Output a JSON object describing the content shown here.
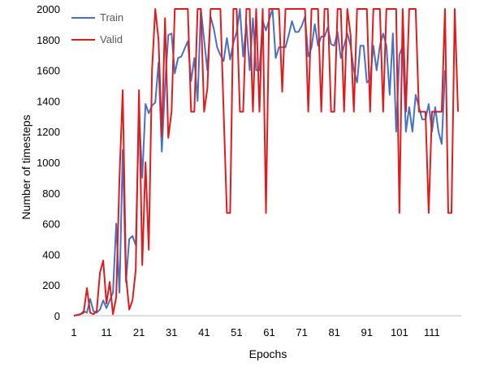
{
  "chart_data": {
    "type": "line",
    "title": "",
    "xlabel": "Epochs",
    "ylabel": "Number of timesteps",
    "xlim": [
      1,
      120
    ],
    "ylim": [
      0,
      2000
    ],
    "x_ticks": [
      1,
      11,
      21,
      31,
      41,
      51,
      61,
      71,
      81,
      91,
      101,
      111
    ],
    "y_ticks": [
      0,
      200,
      400,
      600,
      800,
      1000,
      1200,
      1400,
      1600,
      1800,
      2000
    ],
    "grid": false,
    "legend": "top-left",
    "series": [
      {
        "name": "Train",
        "color": "#4472C4",
        "values": [
          0,
          5,
          10,
          30,
          20,
          110,
          30,
          20,
          40,
          100,
          50,
          100,
          150,
          600,
          150,
          1080,
          220,
          500,
          520,
          460,
          1330,
          900,
          1380,
          1320,
          1370,
          1390,
          1650,
          1070,
          1500,
          1830,
          1840,
          1580,
          1680,
          1690,
          1740,
          1790,
          1530,
          1680,
          1400,
          2000,
          1800,
          1600,
          1950,
          1870,
          1750,
          1700,
          1660,
          1810,
          1670,
          1780,
          1850,
          2000,
          1690,
          1900,
          1600,
          1940,
          1600,
          1600,
          1920,
          1860,
          1930,
          2000,
          1680,
          1750,
          1750,
          1750,
          1830,
          1920,
          1850,
          1850,
          1890,
          1950,
          1690,
          1750,
          1900,
          1760,
          1820,
          1820,
          1880,
          1770,
          1760,
          1850,
          1680,
          1760,
          1840,
          1760,
          1600,
          1520,
          1760,
          1760,
          1520,
          1540,
          1760,
          1600,
          1760,
          1840,
          1760,
          1440,
          1840,
          1200,
          1700,
          1760,
          1200,
          1360,
          1200,
          1440,
          1360,
          1280,
          1280,
          1380,
          1200,
          1360,
          1200,
          1120,
          1600
        ]
      },
      {
        "name": "Valid",
        "color": "#E31A1C",
        "values": [
          0,
          5,
          10,
          20,
          180,
          20,
          10,
          30,
          280,
          360,
          80,
          220,
          10,
          120,
          900,
          1470,
          260,
          40,
          100,
          300,
          1470,
          330,
          1000,
          430,
          1600,
          2000,
          1800,
          1170,
          1940,
          1160,
          1330,
          2000,
          2000,
          2000,
          2000,
          2000,
          1330,
          1330,
          2000,
          2000,
          1330,
          1480,
          2000,
          2000,
          2000,
          2000,
          1330,
          670,
          670,
          2000,
          2000,
          1330,
          1330,
          2000,
          2000,
          1330,
          2000,
          1330,
          2000,
          670,
          2000,
          2000,
          2000,
          2000,
          1460,
          2000,
          2000,
          2000,
          2000,
          2000,
          2000,
          2000,
          1330,
          2000,
          2000,
          2000,
          1330,
          2000,
          2000,
          1330,
          1330,
          2000,
          2000,
          1330,
          2000,
          1830,
          1330,
          2000,
          2000,
          2000,
          2000,
          1330,
          2000,
          2000,
          2000,
          1330,
          2000,
          2000,
          2000,
          2000,
          670,
          2000,
          1330,
          2000,
          2000,
          2000,
          1330,
          1330,
          1330,
          670,
          1330,
          1330,
          1330,
          1330,
          2000,
          670,
          670,
          2000,
          1330
        ]
      }
    ]
  }
}
